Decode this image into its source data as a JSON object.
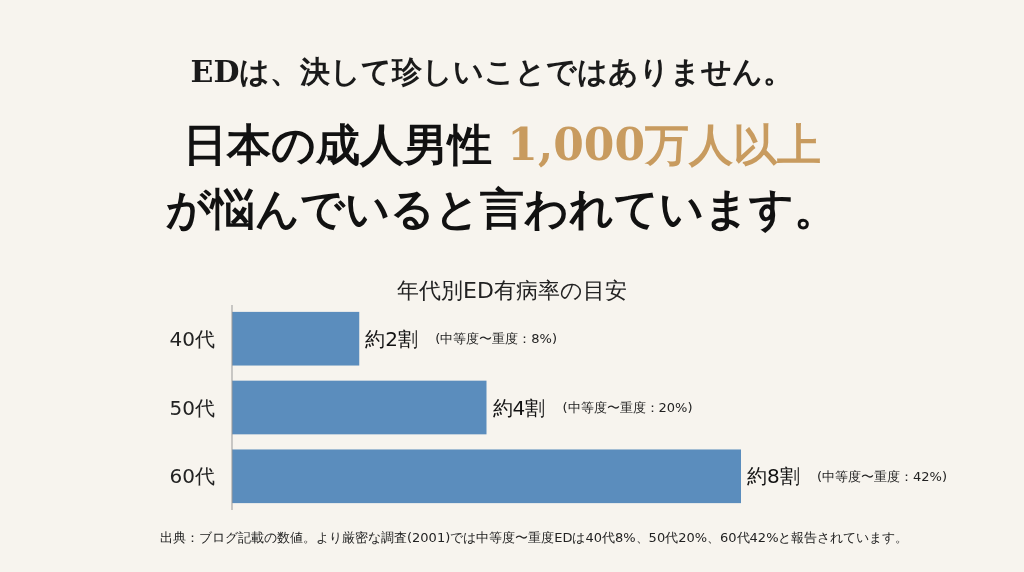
{
  "chart_data": {
    "type": "bar",
    "orientation": "horizontal",
    "subtitle": "EDは、決して珍しいことではありません。",
    "title": "日本の成人男性 1,000万人以上が悩んでいると言われています。",
    "categories": [
      "40代",
      "50代",
      "60代"
    ],
    "values": [
      2,
      4,
      8
    ],
    "color": "#5b8dbd",
    "value_labels": [
      "約2割",
      "約4割",
      "約8割"
    ],
    "annotations": [
      "(中等度〜重度：8%)",
      "(中等度〜重度：20%)",
      "(中等度〜重度：42%)",
      "年代別ED有病率の目安",
      "出典：ブログ記載の数値。より厳密な調査(2001)では中等度〜重度EDは40代8%、50代20%、60代42%と報告されています。"
    ]
  }
}
